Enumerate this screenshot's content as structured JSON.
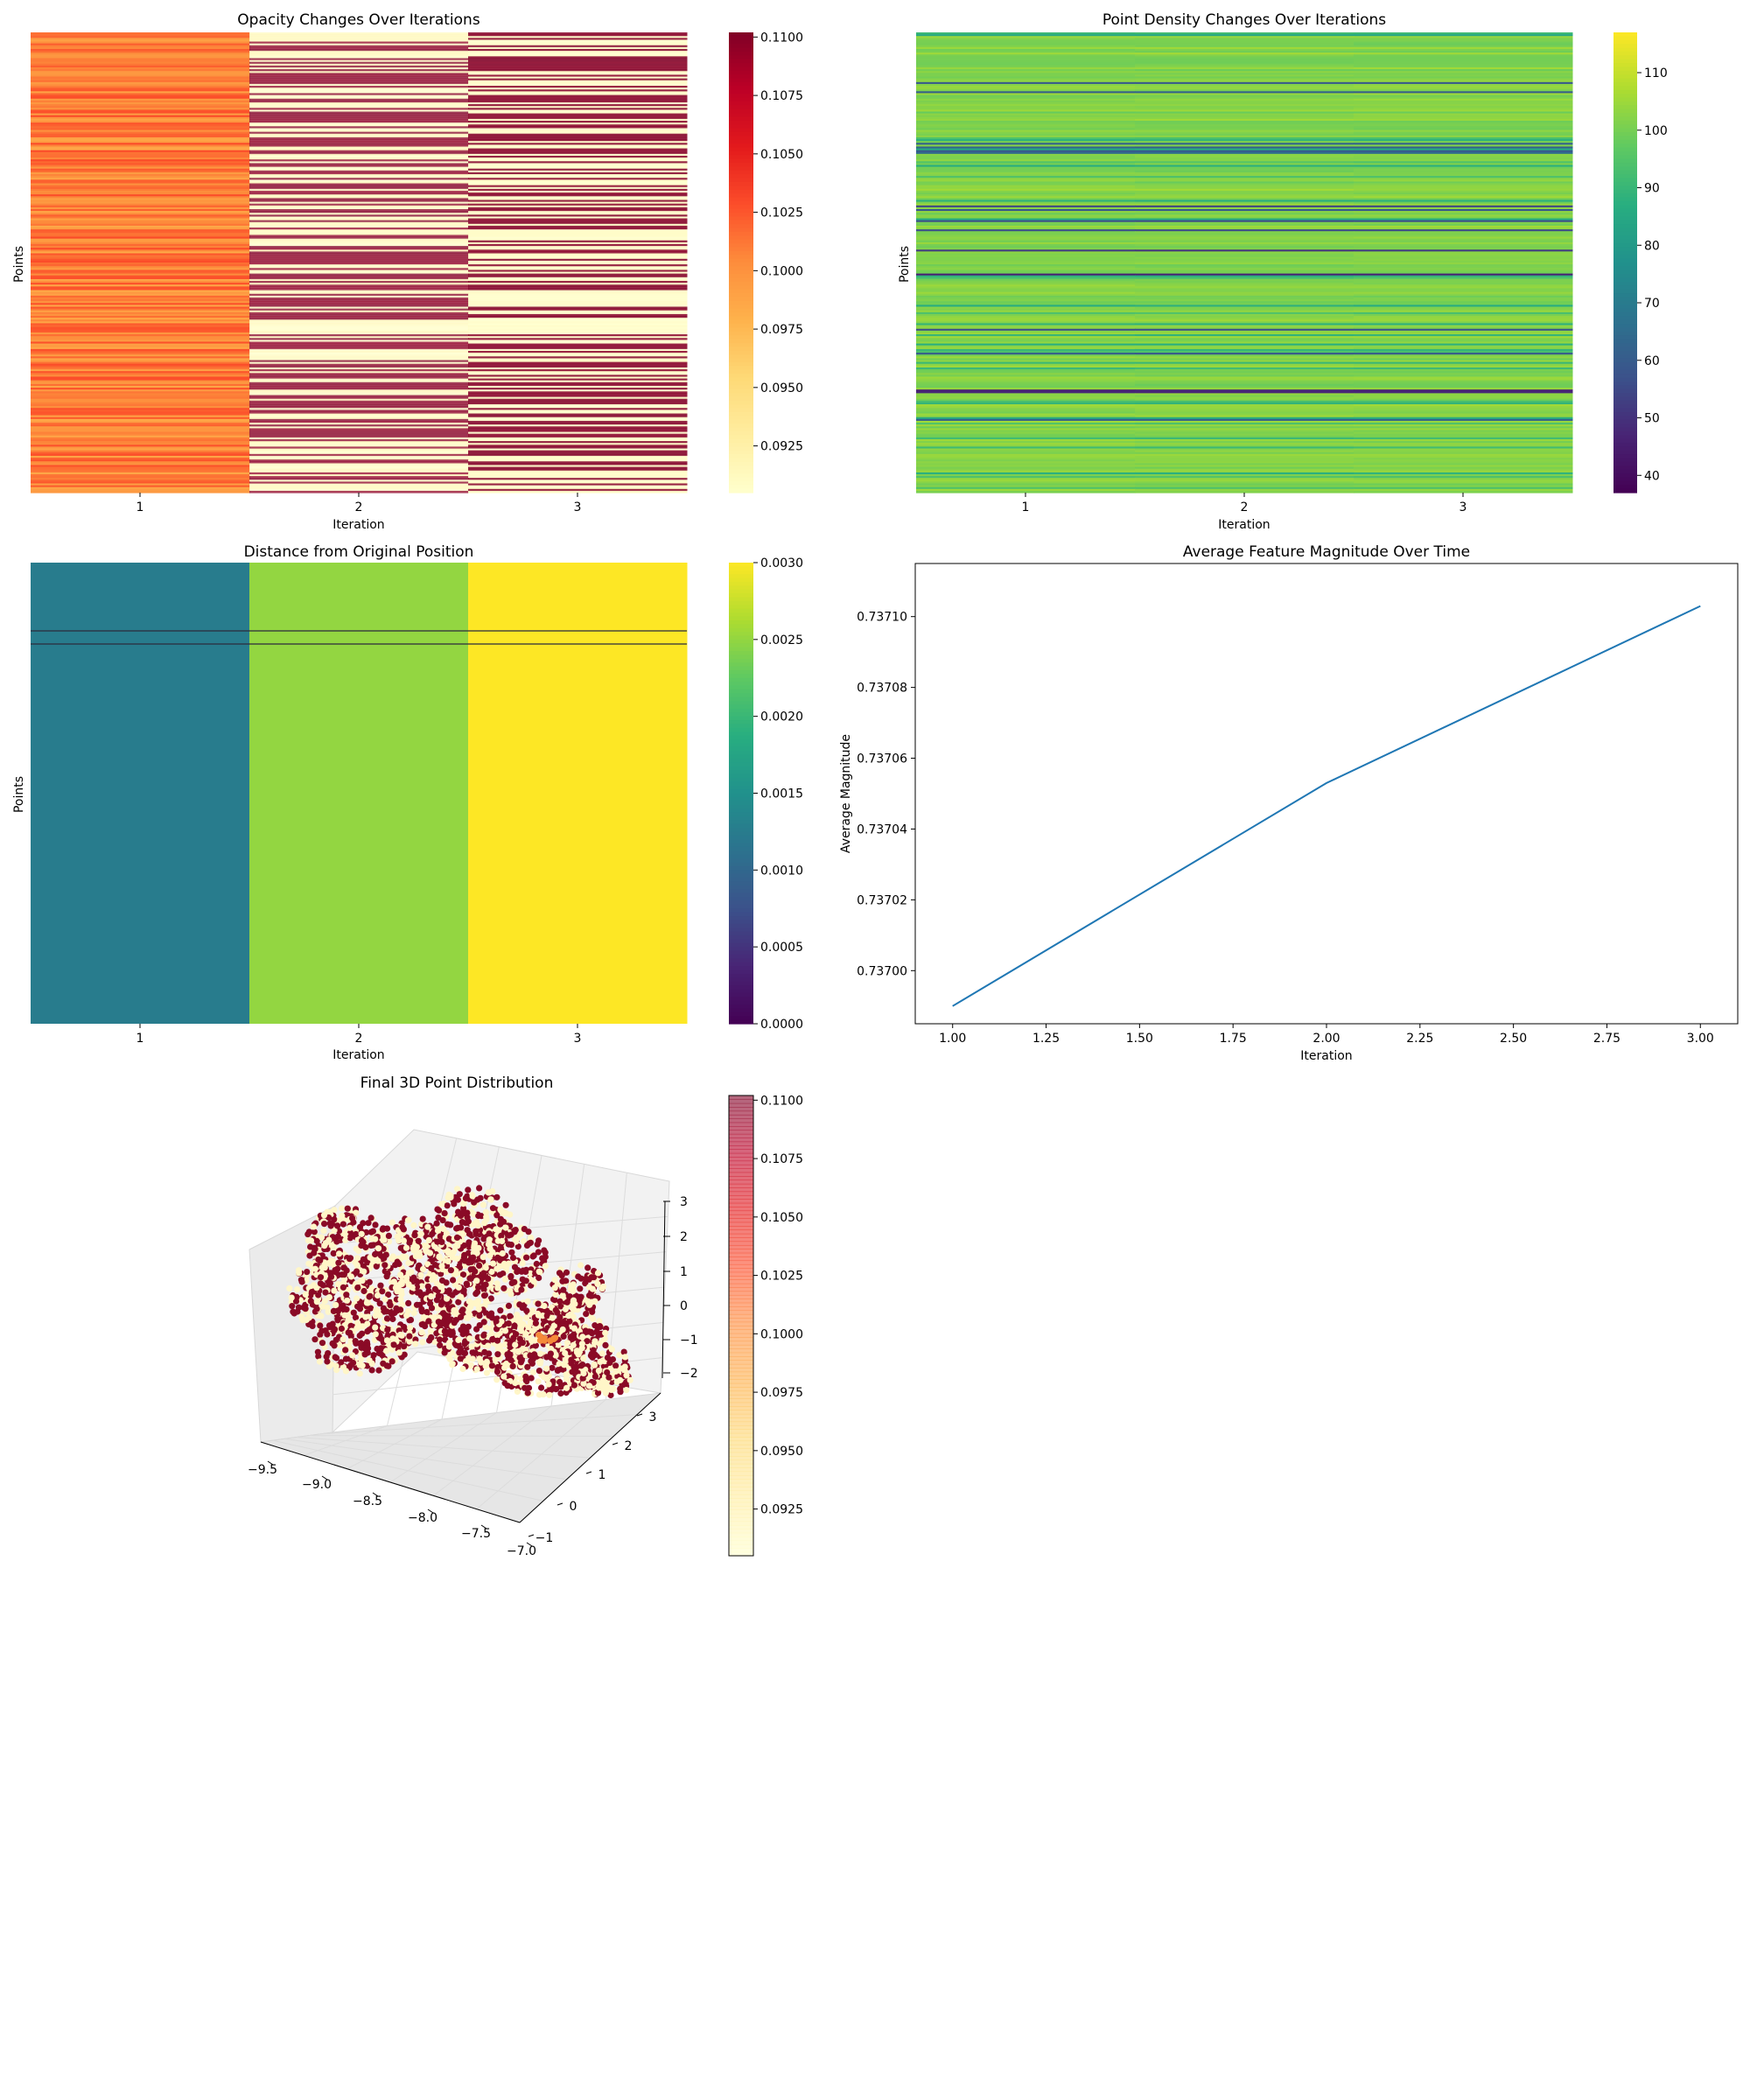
{
  "chart_data": [
    {
      "type": "heatmap",
      "title": "Opacity Changes Over Iterations",
      "xlabel": "Iteration",
      "ylabel": "Points",
      "categories": [
        "1",
        "2",
        "3"
      ],
      "colormap": "YlOrRd",
      "colorbar": {
        "min": 0.0905,
        "max": 0.1102,
        "ticks": [
          0.0925,
          0.095,
          0.0975,
          0.1,
          0.1025,
          0.105,
          0.1075,
          0.11
        ],
        "tick_labels": [
          "0.0925",
          "0.0950",
          "0.0975",
          "0.1000",
          "0.1025",
          "0.1050",
          "0.1075",
          "0.1100"
        ]
      },
      "column_means": [
        0.1007,
        0.1018,
        0.0998
      ],
      "row_count": 250,
      "description_of_values": "per-point opacity, column 1 near 0.096-0.104, columns 2-3 alternate between ~0.0905 and ~0.1102"
    },
    {
      "type": "heatmap",
      "title": "Point Density Changes Over Iterations",
      "xlabel": "Iteration",
      "ylabel": "Points",
      "categories": [
        "1",
        "2",
        "3"
      ],
      "colormap": "viridis",
      "colorbar": {
        "min": 37,
        "max": 117,
        "ticks": [
          40,
          50,
          60,
          70,
          80,
          90,
          100,
          110
        ],
        "tick_labels": [
          "40",
          "50",
          "60",
          "70",
          "80",
          "90",
          "100",
          "110"
        ]
      },
      "typical_value": 102,
      "row_count": 250
    },
    {
      "type": "heatmap",
      "title": "Distance from Original Position",
      "xlabel": "Iteration",
      "ylabel": "Points",
      "categories": [
        "1",
        "2",
        "3"
      ],
      "colormap": "viridis",
      "colorbar": {
        "min": 0.0,
        "max": 0.003,
        "ticks": [
          0.0,
          0.0005,
          0.001,
          0.0015,
          0.002,
          0.0025,
          0.003
        ],
        "tick_labels": [
          "0.0000",
          "0.0005",
          "0.0010",
          "0.0015",
          "0.0020",
          "0.0025",
          "0.0030"
        ]
      },
      "column_values": [
        0.00125,
        0.0025,
        0.003
      ]
    },
    {
      "type": "line",
      "title": "Average Feature Magnitude Over Time",
      "xlabel": "Iteration",
      "ylabel": "Average Magnitude",
      "x": [
        1,
        2,
        3
      ],
      "series": [
        {
          "values": [
            0.73699,
            0.737053,
            0.737103
          ],
          "color": "#1f77b4"
        }
      ],
      "xlim": [
        0.9,
        3.1
      ],
      "ylim": [
        0.736985,
        0.737115
      ],
      "xticks": [
        1.0,
        1.25,
        1.5,
        1.75,
        2.0,
        2.25,
        2.5,
        2.75,
        3.0
      ],
      "xtick_labels": [
        "1.00",
        "1.25",
        "1.50",
        "1.75",
        "2.00",
        "2.25",
        "2.50",
        "2.75",
        "3.00"
      ],
      "yticks": [
        0.737,
        0.73702,
        0.73704,
        0.73706,
        0.73708,
        0.7371
      ],
      "ytick_labels": [
        "0.73700",
        "0.73702",
        "0.73704",
        "0.73706",
        "0.73708",
        "0.73710"
      ]
    },
    {
      "type": "scatter",
      "title": "Final 3D Point Distribution",
      "projection": "3d",
      "colormap": "YlOrRd",
      "colorbar": {
        "min": 0.0905,
        "max": 0.1102,
        "ticks": [
          0.0925,
          0.095,
          0.0975,
          0.1,
          0.1025,
          0.105,
          0.1075,
          0.11
        ],
        "tick_labels": [
          "0.0925",
          "0.0950",
          "0.0975",
          "0.1000",
          "0.1025",
          "0.1050",
          "0.1075",
          "0.1100"
        ]
      },
      "xlim": [
        -9.6,
        -7.0
      ],
      "ylim": [
        -1.2,
        3.5
      ],
      "zlim": [
        -2.4,
        3.0
      ],
      "xtick_labels": [
        "−9.5",
        "−9.0",
        "−8.5",
        "−8.0",
        "−7.5",
        "−7.0"
      ],
      "ytick_labels": [
        "−1",
        "0",
        "1",
        "2",
        "3"
      ],
      "ztick_labels": [
        "−2",
        "−1",
        "0",
        "1",
        "2",
        "3"
      ]
    }
  ]
}
